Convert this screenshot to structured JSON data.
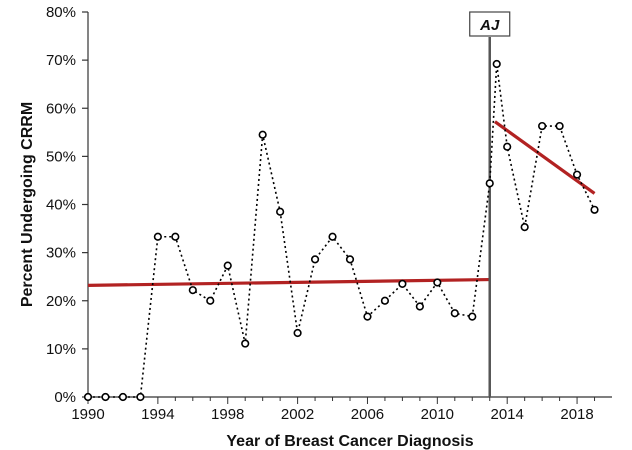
{
  "chart_data": {
    "type": "line",
    "title": "",
    "xlabel": "Year of Breast Cancer Diagnosis",
    "ylabel": "Percent Undergoing CRRM",
    "xlim": [
      1990,
      2020
    ],
    "ylim": [
      0,
      80
    ],
    "x_ticks": [
      1990,
      1994,
      1998,
      2002,
      2006,
      2010,
      2014,
      2018
    ],
    "y_ticks": [
      0,
      10,
      20,
      30,
      40,
      50,
      60,
      70,
      80
    ],
    "y_tick_suffix": "%",
    "grid": false,
    "legend": "none",
    "series": [
      {
        "style": "dotted line with open circle markers",
        "color": "#000000",
        "x": [
          1990,
          1991,
          1992,
          1993,
          1994,
          1995,
          1996,
          1997,
          1998,
          1999,
          2000,
          2001,
          2002,
          2003,
          2004,
          2005,
          2006,
          2007,
          2008,
          2009,
          2010,
          2011,
          2012,
          2013,
          2013.4,
          2014,
          2015,
          2016,
          2017,
          2018,
          2019
        ],
        "y": [
          0,
          0,
          0,
          0,
          33.3,
          33.3,
          22.2,
          20.0,
          27.3,
          11.1,
          54.5,
          38.5,
          13.3,
          28.6,
          33.3,
          28.6,
          16.7,
          20.0,
          23.5,
          18.8,
          23.8,
          17.4,
          16.7,
          44.4,
          69.2,
          52.0,
          35.3,
          56.3,
          56.3,
          46.2,
          38.9
        ]
      }
    ],
    "trend_lines": [
      {
        "color": "#b22222",
        "x": [
          1990,
          2013
        ],
        "y": [
          23.2,
          24.4
        ]
      },
      {
        "color": "#b22222",
        "x": [
          2013.3,
          2019
        ],
        "y": [
          57.2,
          42.3
        ]
      }
    ],
    "annotations": [
      {
        "label": "AJ",
        "x": 2013,
        "type": "vertical-line"
      }
    ]
  }
}
